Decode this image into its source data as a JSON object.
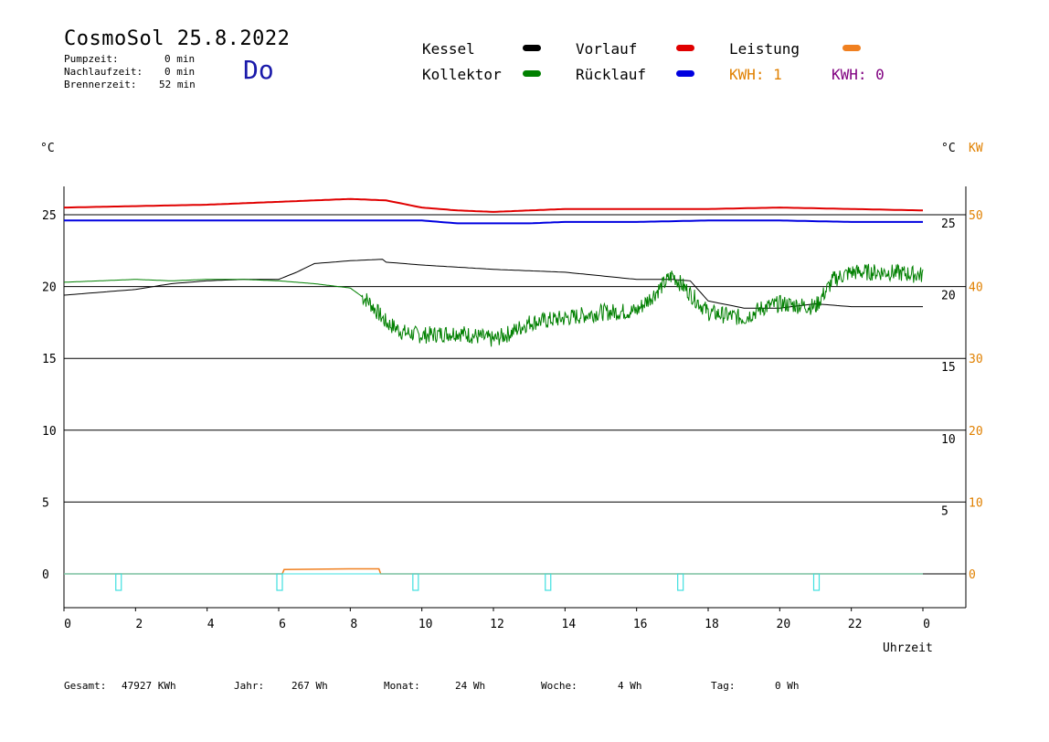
{
  "header": {
    "title": "CosmoSol 25.8.2022",
    "day": "Do",
    "stats": [
      {
        "label": "Pumpzeit:",
        "value": "0 min"
      },
      {
        "label": "Nachlaufzeit:",
        "value": "0 min"
      },
      {
        "label": "Brennerzeit:",
        "value": "52 min"
      }
    ]
  },
  "legend": {
    "kessel": {
      "label": "Kessel",
      "color": "#000000"
    },
    "kollektor": {
      "label": "Kollektor",
      "color": "#008000"
    },
    "vorlauf": {
      "label": "Vorlauf",
      "color": "#e00000"
    },
    "ruecklauf": {
      "label": "Rücklauf",
      "color": "#0000e0"
    },
    "leistung": {
      "label": "Leistung",
      "color": "#f08020"
    },
    "kwh1": {
      "label": "KWH: 1",
      "color": "#e08000"
    },
    "kwh0": {
      "label": "KWH: 0",
      "color": "#800080"
    }
  },
  "axes": {
    "left_unit": "°C",
    "right_unit_c": "°C",
    "right_unit_kw": "KW",
    "x_label": "Uhrzeit"
  },
  "footer": [
    {
      "label": "Gesamt:",
      "value": "47927 KWh"
    },
    {
      "label": "Jahr:",
      "value": "267 Wh"
    },
    {
      "label": "Monat:",
      "value": "24 Wh"
    },
    {
      "label": "Woche:",
      "value": "4 Wh"
    },
    {
      "label": "Tag:",
      "value": "0 Wh"
    }
  ],
  "chart_data": {
    "type": "line",
    "x_ticks": [
      "0",
      "2",
      "4",
      "6",
      "8",
      "10",
      "12",
      "14",
      "16",
      "18",
      "20",
      "22",
      "0"
    ],
    "y_left_ticks": [
      "0",
      "5",
      "10",
      "15",
      "20",
      "25"
    ],
    "y_right_c_ticks": [
      "5",
      "10",
      "15",
      "20",
      "25"
    ],
    "y_right_kw_ticks": [
      "0",
      "10",
      "20",
      "30",
      "40",
      "50"
    ],
    "xlim": [
      0,
      24
    ],
    "ylim": [
      -2,
      27
    ],
    "grid": true,
    "series": [
      {
        "name": "Vorlauf",
        "color": "#e00000",
        "x": [
          0,
          2,
          4,
          6,
          7,
          8,
          9,
          10,
          11,
          12,
          13,
          14,
          16,
          18,
          20,
          22,
          24
        ],
        "y": [
          25.5,
          25.6,
          25.7,
          25.9,
          26.0,
          26.1,
          26.0,
          25.5,
          25.3,
          25.2,
          25.3,
          25.4,
          25.4,
          25.4,
          25.5,
          25.4,
          25.3
        ]
      },
      {
        "name": "Rücklauf",
        "color": "#0000e0",
        "x": [
          0,
          2,
          4,
          6,
          8,
          10,
          11,
          12,
          13,
          14,
          16,
          18,
          20,
          22,
          24
        ],
        "y": [
          24.6,
          24.6,
          24.6,
          24.6,
          24.6,
          24.6,
          24.4,
          24.4,
          24.4,
          24.5,
          24.5,
          24.6,
          24.6,
          24.5,
          24.5
        ]
      },
      {
        "name": "Kessel",
        "color": "#000000",
        "x": [
          0,
          1,
          2,
          3,
          4,
          5,
          6,
          6.5,
          7,
          8,
          8.9,
          9,
          10,
          12,
          14,
          16,
          17,
          17.5,
          18,
          19,
          20,
          21,
          22,
          23,
          24
        ],
        "y": [
          19.4,
          19.6,
          19.8,
          20.2,
          20.4,
          20.5,
          20.5,
          21.0,
          21.6,
          21.8,
          21.9,
          21.7,
          21.5,
          21.2,
          21.0,
          20.5,
          20.5,
          20.4,
          19.0,
          18.5,
          18.5,
          18.8,
          18.6,
          18.6,
          18.6
        ]
      },
      {
        "name": "Kollektor",
        "color": "#008000",
        "x": [
          0,
          1,
          2,
          3,
          4,
          5,
          6,
          7,
          8,
          8.5,
          9,
          9.5,
          10,
          11,
          12,
          12.5,
          13,
          14,
          15,
          16,
          16.5,
          17,
          17.5,
          18,
          19,
          19.5,
          20,
          21,
          21.5,
          22,
          23,
          24
        ],
        "y": [
          20.3,
          20.4,
          20.5,
          20.4,
          20.5,
          20.5,
          20.4,
          20.2,
          19.9,
          19.0,
          17.5,
          16.8,
          16.6,
          16.8,
          16.3,
          16.8,
          17.5,
          17.8,
          18.2,
          18.3,
          19.5,
          20.8,
          19.5,
          18.2,
          17.8,
          18.5,
          18.8,
          18.6,
          20.5,
          21.0,
          21.0,
          20.8
        ]
      },
      {
        "name": "Leistung",
        "color": "#f08020",
        "axis": "right_kw",
        "x": [
          0,
          6.1,
          6.15,
          8.0,
          8.8,
          8.85,
          24
        ],
        "y": [
          0,
          0,
          0.6,
          0.7,
          0.7,
          0,
          0
        ]
      }
    ],
    "pump_pulses_hours": [
      1.5,
      6.0,
      9.8,
      13.5,
      17.2,
      21.0
    ]
  }
}
